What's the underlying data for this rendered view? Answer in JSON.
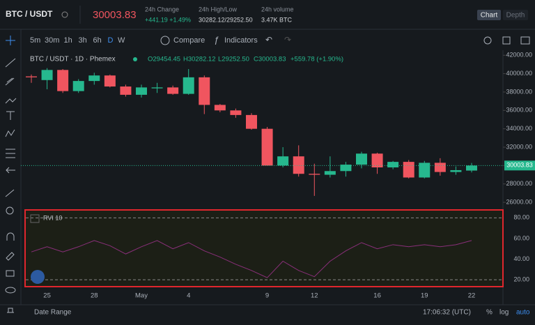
{
  "header": {
    "pair": "BTC / USDT",
    "price": "30003.83",
    "stats": [
      {
        "label": "24h Change",
        "value": "+441.19 +1.49%"
      },
      {
        "label": "24h High/Low",
        "value": "30282.12/29252.50"
      },
      {
        "label": "24h volume",
        "value": "3.47K BTC"
      }
    ],
    "tabs": [
      "Chart",
      "Depth"
    ]
  },
  "toolbar": {
    "intervals": [
      "5m",
      "30m",
      "1h",
      "3h",
      "6h",
      "D",
      "W"
    ],
    "compare": "Compare",
    "indicators": "Indicators"
  },
  "legend": {
    "title": "BTC / USDT · 1D · Phemex",
    "open": "O29454.45",
    "high": "H30282.12",
    "low": "L29252.50",
    "close": "C30003.83",
    "change": "+559.78 (+1.90%)"
  },
  "chart_data": {
    "type": "candlestick",
    "up_color": "#26b88e",
    "down_color": "#f0555f",
    "categories": [
      null,
      "25",
      null,
      null,
      "28",
      null,
      null,
      "May",
      null,
      null,
      "4",
      null,
      null,
      null,
      null,
      "9",
      null,
      null,
      "12",
      null,
      null,
      null,
      "16",
      null,
      null,
      "19",
      null,
      null,
      "22"
    ],
    "open": [
      39700,
      39300,
      40400,
      38100,
      39200,
      39800,
      38600,
      37700,
      38400,
      38500,
      37800,
      39600,
      36600,
      36000,
      35500,
      34000,
      30000,
      31000,
      29100,
      29000,
      29400,
      30100,
      31300,
      29800,
      30400,
      28700,
      30300,
      29300,
      29454.45
    ],
    "high": [
      39900,
      40600,
      40500,
      39400,
      40100,
      39900,
      38800,
      38800,
      39000,
      38700,
      40500,
      39800,
      36700,
      36200,
      35700,
      34200,
      32000,
      32200,
      30200,
      31000,
      30400,
      31500,
      31400,
      30500,
      30600,
      30500,
      30800,
      29900,
      30282.12
    ],
    "low": [
      39000,
      38300,
      37900,
      37900,
      38800,
      38500,
      37500,
      37400,
      37900,
      37700,
      37700,
      35600,
      35800,
      35200,
      33900,
      30000,
      29800,
      28800,
      26700,
      28700,
      28800,
      29700,
      29100,
      29600,
      28600,
      28600,
      28900,
      29000,
      29252.5
    ],
    "close": [
      39600,
      40400,
      38100,
      39200,
      39800,
      38600,
      37700,
      38500,
      38500,
      37800,
      39600,
      36600,
      36000,
      35500,
      34000,
      30000,
      31000,
      29100,
      29000,
      29400,
      30100,
      31300,
      29800,
      30400,
      28700,
      30300,
      29300,
      29500,
      30003.83
    ],
    "ylim": [
      25400,
      42700
    ],
    "yticks": [
      {
        "value": 42000,
        "label": "42000.00"
      },
      {
        "value": 40000,
        "label": "40000.00"
      },
      {
        "value": 38000,
        "label": "38000.00"
      },
      {
        "value": 36000,
        "label": "36000.00"
      },
      {
        "value": 34000,
        "label": "34000.00"
      },
      {
        "value": 32000,
        "label": "32000.00"
      },
      {
        "value": 30000,
        "label": "30000.00"
      },
      {
        "value": 28000,
        "label": "28000.00"
      },
      {
        "value": 26000,
        "label": "26000.00"
      }
    ],
    "indicator": {
      "type": "line",
      "name": "RVI 10",
      "color": "#8a2f7a",
      "values": [
        47,
        52,
        47,
        52,
        58,
        53,
        45,
        52,
        58,
        50,
        56,
        48,
        42,
        35,
        29,
        22,
        38,
        29,
        23,
        38,
        48,
        56,
        50,
        54,
        52,
        54,
        52,
        54,
        58
      ],
      "ylim": [
        14,
        87
      ],
      "yticks": [
        {
          "value": 80,
          "label": "80.00"
        },
        {
          "value": 60,
          "label": "60.00"
        },
        {
          "value": 40,
          "label": "40.00"
        },
        {
          "value": 20,
          "label": "20.00"
        }
      ]
    }
  },
  "footer": {
    "date_range": "Date Range",
    "time": "17:06:32 (UTC)",
    "percent": "%",
    "log": "log",
    "auto": "auto"
  }
}
